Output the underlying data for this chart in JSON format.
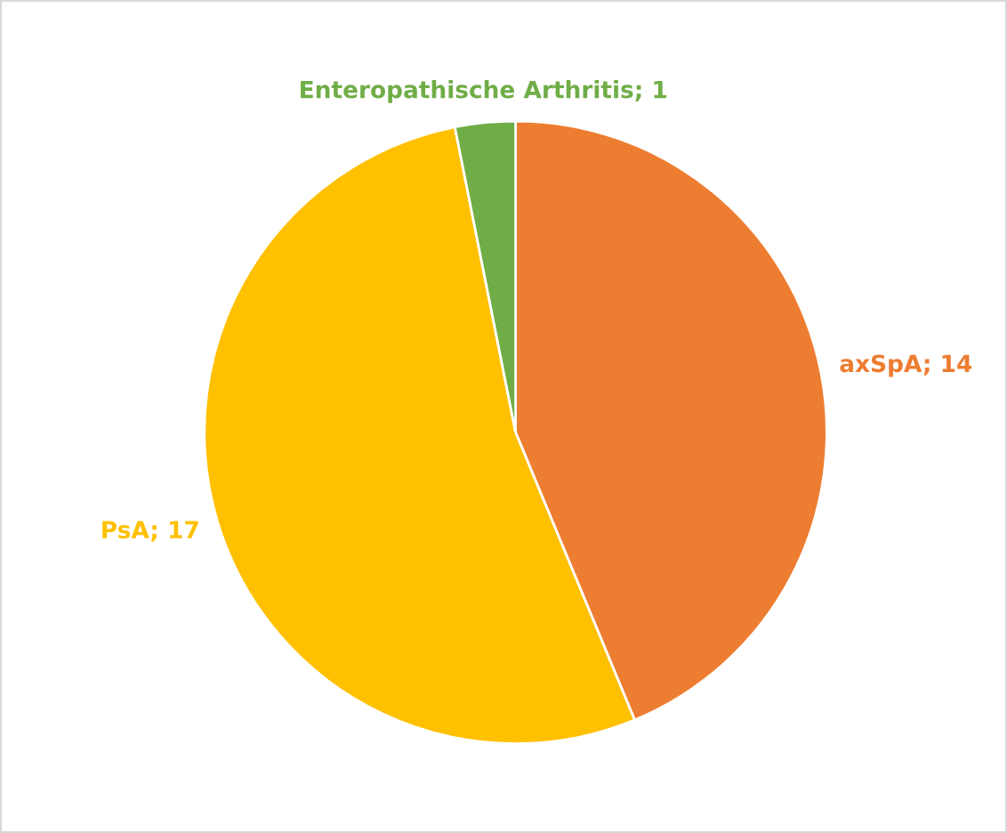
{
  "chart_data": {
    "type": "pie",
    "categories": [
      null,
      null,
      null
    ],
    "values": [
      14,
      17,
      1
    ],
    "value_labels": [
      "axSpA; 14",
      "PsA; 17",
      "Enteropathische Arthritis; 1"
    ],
    "colors": [
      "#ed7d31",
      "#ffc000",
      "#70ad47"
    ]
  }
}
